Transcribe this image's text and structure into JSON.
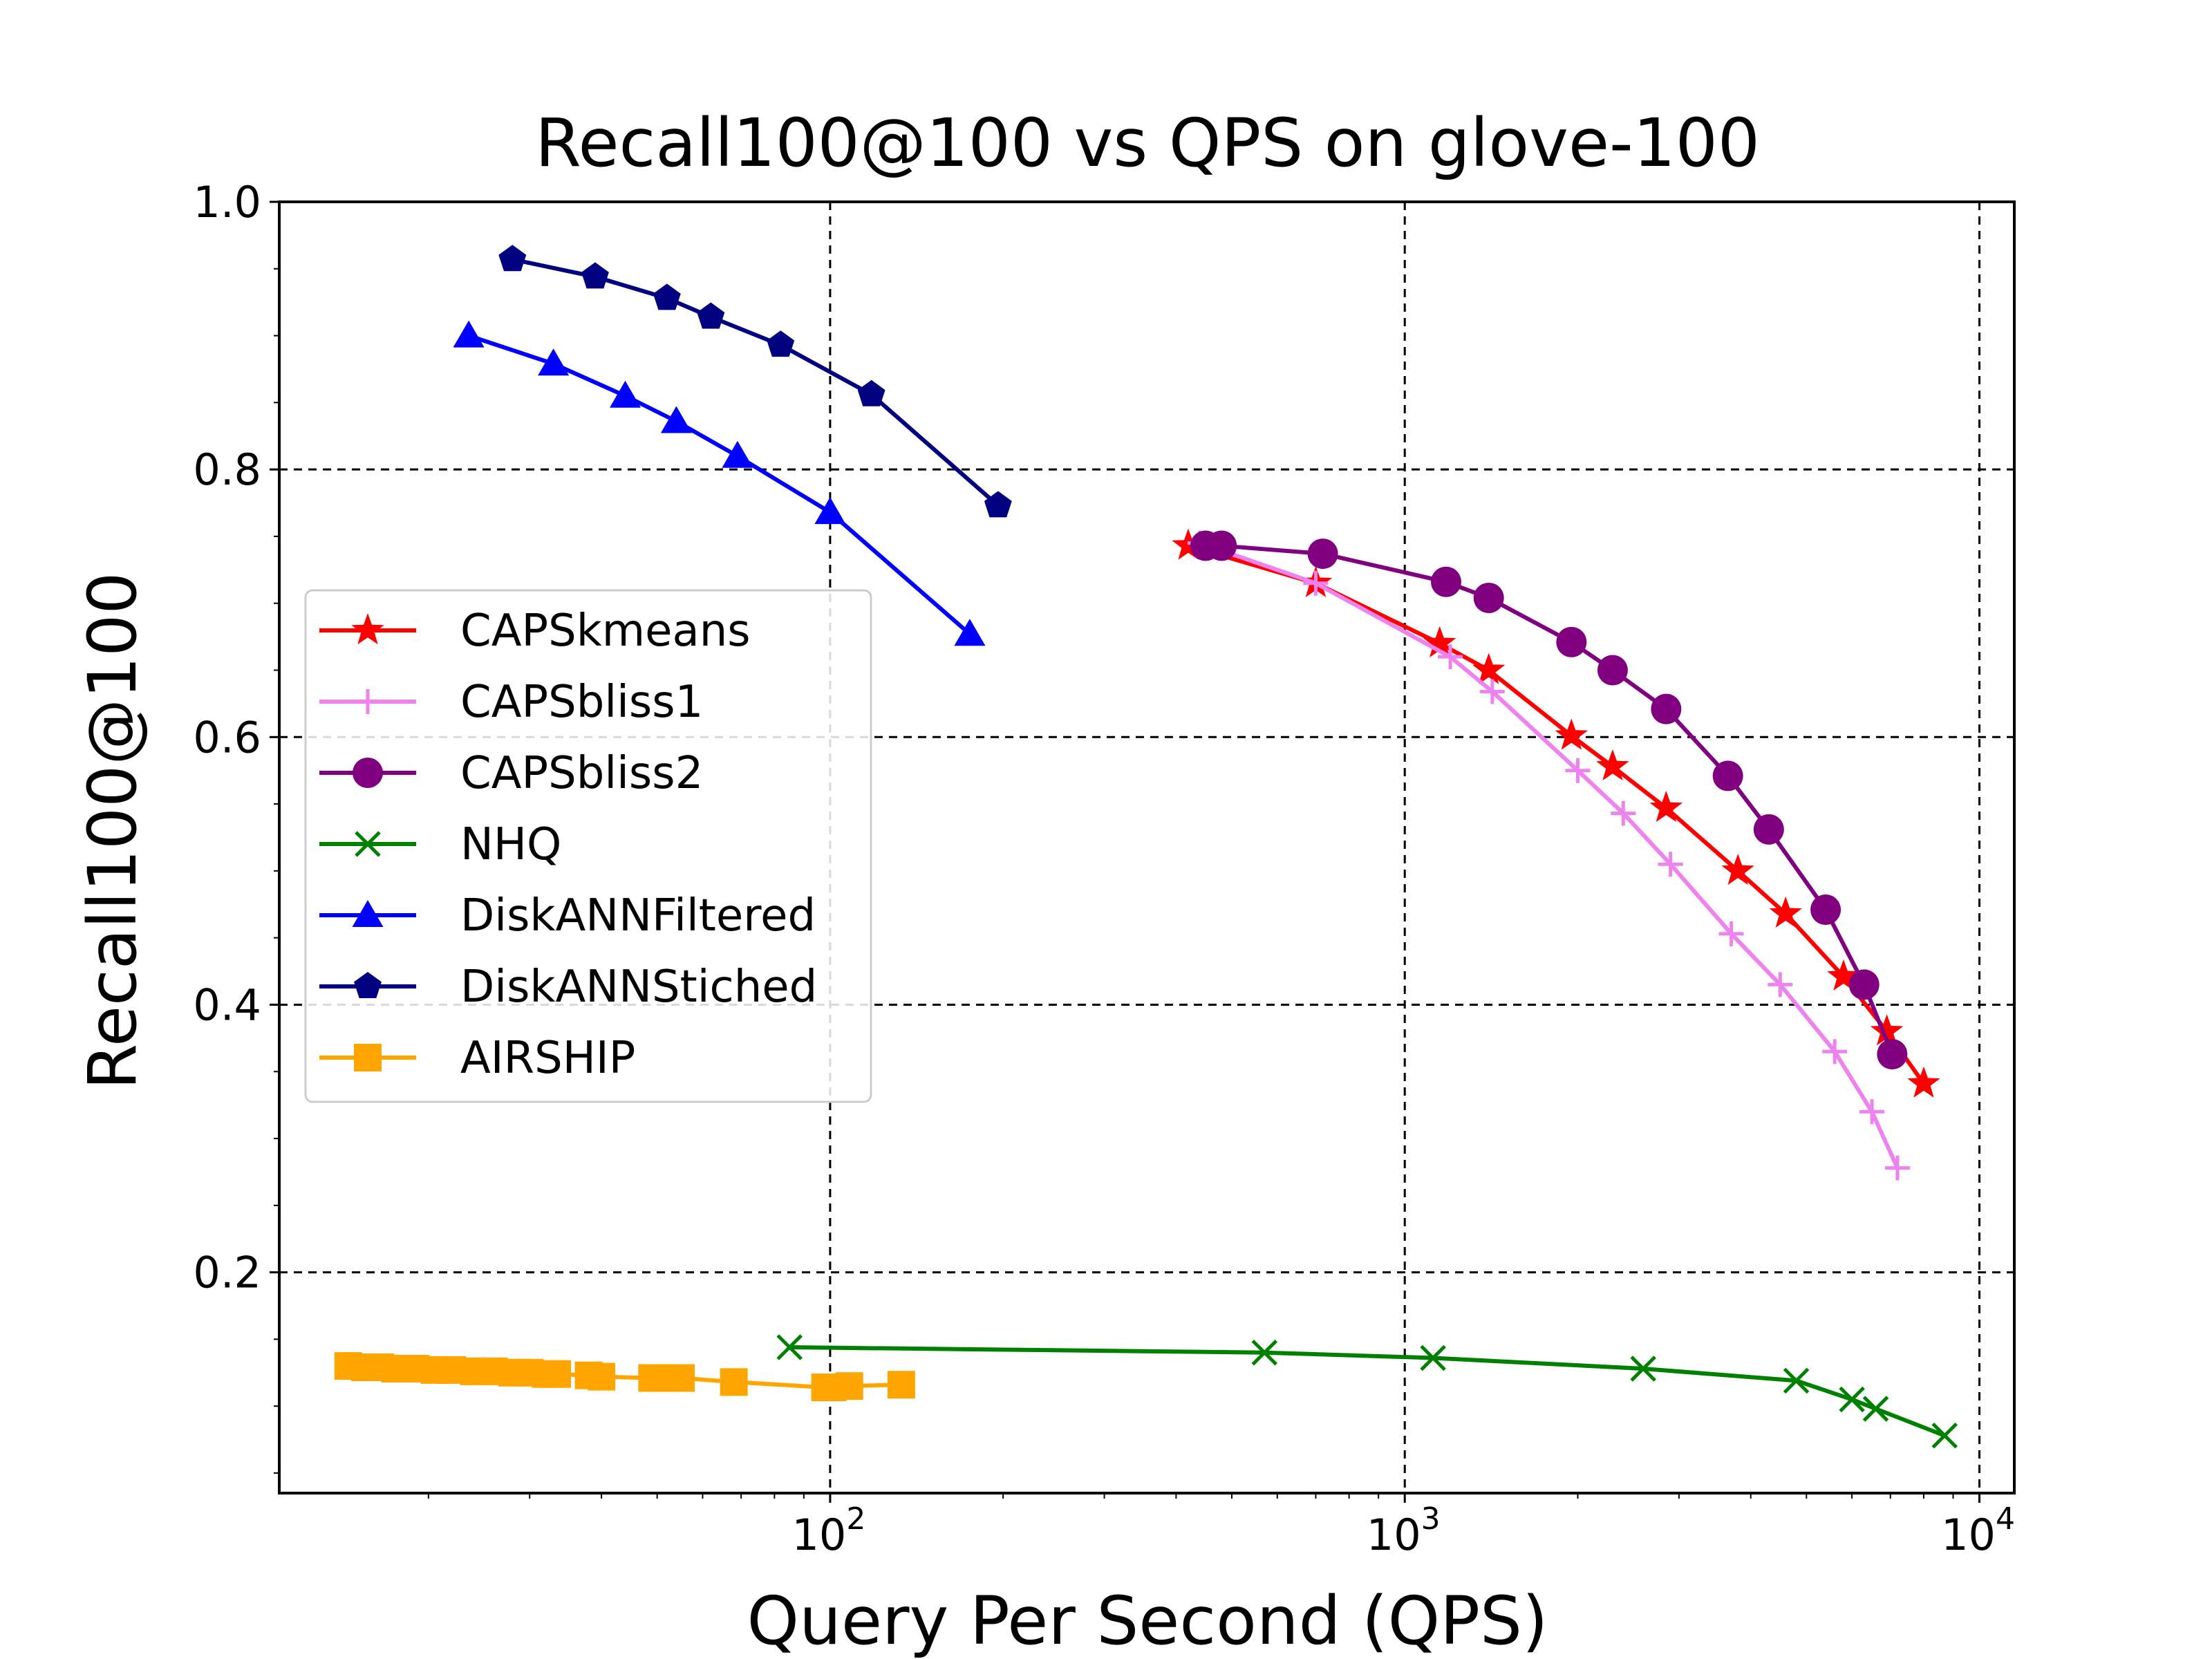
{
  "chart_data": {
    "type": "line",
    "title": "Recall100@100 vs QPS on glove-100",
    "xlabel": "Query Per Second (QPS)",
    "ylabel": "Recall100@100",
    "x_scale": "log",
    "xlim": [
      11,
      11500
    ],
    "ylim": [
      0.035,
      1.0
    ],
    "x_ticks": [
      {
        "value": 100,
        "base": "10",
        "exp": "2"
      },
      {
        "value": 1000,
        "base": "10",
        "exp": "3"
      },
      {
        "value": 10000,
        "base": "10",
        "exp": "4"
      }
    ],
    "y_ticks": [
      {
        "value": 0.2,
        "label": "0.2"
      },
      {
        "value": 0.4,
        "label": "0.4"
      },
      {
        "value": 0.6,
        "label": "0.6"
      },
      {
        "value": 0.8,
        "label": "0.8"
      },
      {
        "value": 1.0,
        "label": "1.0"
      }
    ],
    "grid": true,
    "legend_position": "center-left",
    "series": [
      {
        "name": "CAPSkmeans",
        "color": "#ff0000",
        "marker": "star",
        "x": [
          420,
          700,
          1150,
          1400,
          1950,
          2300,
          2850,
          3800,
          4600,
          5800,
          6900,
          8000
        ],
        "y": [
          0.743,
          0.715,
          0.67,
          0.65,
          0.601,
          0.578,
          0.547,
          0.5,
          0.468,
          0.421,
          0.38,
          0.341
        ]
      },
      {
        "name": "CAPSbliss1",
        "color": "#ee82ee",
        "marker": "plus",
        "x": [
          440,
          700,
          1200,
          1420,
          2000,
          2400,
          2900,
          3700,
          4500,
          5600,
          6500,
          7200
        ],
        "y": [
          0.745,
          0.715,
          0.66,
          0.634,
          0.575,
          0.543,
          0.505,
          0.453,
          0.415,
          0.365,
          0.32,
          0.278
        ]
      },
      {
        "name": "CAPSbliss2",
        "color": "#800080",
        "marker": "circle",
        "x": [
          450,
          480,
          720,
          1180,
          1400,
          1950,
          2300,
          2850,
          3650,
          4300,
          5400,
          6300,
          7050
        ],
        "y": [
          0.743,
          0.743,
          0.737,
          0.716,
          0.704,
          0.671,
          0.65,
          0.621,
          0.571,
          0.531,
          0.471,
          0.415,
          0.363
        ]
      },
      {
        "name": "NHQ",
        "color": "#008000",
        "marker": "x",
        "x": [
          85,
          570,
          1120,
          2600,
          4800,
          6000,
          6600,
          8700
        ],
        "y": [
          0.144,
          0.14,
          0.136,
          0.128,
          0.119,
          0.105,
          0.098,
          0.078
        ]
      },
      {
        "name": "DiskANNFiltered",
        "color": "#0000ff",
        "marker": "triangle",
        "x": [
          23.5,
          33,
          44,
          54,
          69,
          100,
          175
        ],
        "y": [
          0.9,
          0.879,
          0.855,
          0.836,
          0.81,
          0.768,
          0.677
        ]
      },
      {
        "name": "DiskANNStiched",
        "color": "#000080",
        "marker": "pentagon",
        "x": [
          28,
          39,
          52,
          62,
          82,
          118,
          196
        ],
        "y": [
          0.957,
          0.944,
          0.928,
          0.914,
          0.893,
          0.856,
          0.773
        ]
      },
      {
        "name": "AIRSHIP",
        "color": "#ffa500",
        "marker": "square",
        "x": [
          14.5,
          15.5,
          16.5,
          17.5,
          19,
          20.5,
          22,
          24,
          26,
          28,
          30,
          32,
          33.5,
          38,
          40,
          49,
          51,
          55,
          68,
          98,
          101,
          108,
          133
        ],
        "y": [
          0.13,
          0.129,
          0.129,
          0.128,
          0.128,
          0.127,
          0.127,
          0.126,
          0.126,
          0.125,
          0.125,
          0.124,
          0.124,
          0.123,
          0.122,
          0.121,
          0.121,
          0.121,
          0.118,
          0.114,
          0.114,
          0.115,
          0.116
        ]
      }
    ]
  }
}
